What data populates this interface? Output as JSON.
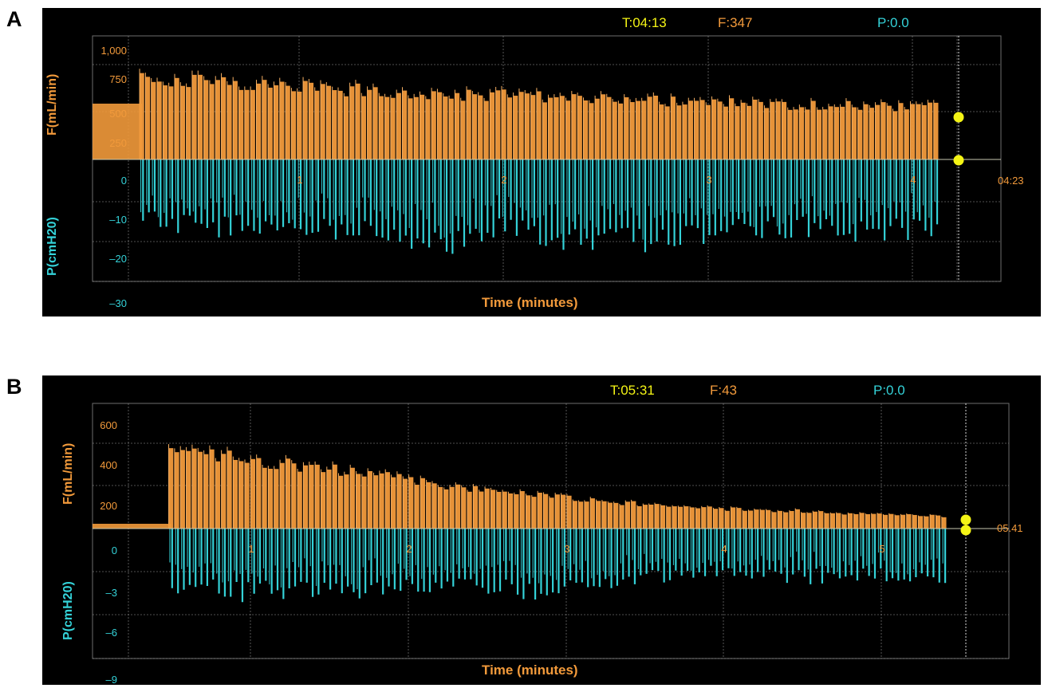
{
  "panels": [
    {
      "label": "A",
      "header": {
        "time": "T:04:13",
        "flow": "F:347",
        "pressure": "P:0.0"
      },
      "f_axis_label": "F(mL/min)",
      "p_axis_label": "P(cmH20)",
      "x_axis_label": "Time (minutes)",
      "end_time": "04:23",
      "colors": {
        "flow": "#f29a3b",
        "pressure": "#34d2d8",
        "marker": "#f4f415",
        "grid": "#9a9a9a"
      }
    },
    {
      "label": "B",
      "header": {
        "time": "T:05:31",
        "flow": "F:43",
        "pressure": "P:0.0"
      },
      "f_axis_label": "F(mL/min)",
      "p_axis_label": "P(cmH20)",
      "x_axis_label": "Time (minutes)",
      "end_time": "05.41",
      "colors": {
        "flow": "#f29a3b",
        "pressure": "#34d2d8",
        "marker": "#f4f415",
        "grid": "#9a9a9a"
      }
    }
  ],
  "chart_data": [
    {
      "type": "bar",
      "x_unit": "minutes",
      "xlim": [
        0,
        4.3
      ],
      "x_ticks": [
        "1",
        "2",
        "3",
        "4"
      ],
      "flow": {
        "ylim": [
          0,
          1000
        ],
        "y_ticks": [
          "1,000",
          "750",
          "500",
          "250"
        ],
        "breath_start_min": 0.07,
        "breath_interval_min": 0.0303,
        "peaks": [
          880,
          820,
          790,
          740,
          700,
          680,
          640,
          620,
          600,
          580,
          570,
          560
        ]
      },
      "pressure": {
        "ylim": [
          -30,
          0
        ],
        "y_ticks": [
          "0",
          "–10",
          "–20",
          "–30"
        ],
        "troughs": [
          -15,
          -17,
          -16,
          -18,
          -22,
          -17,
          -21,
          -20,
          -18,
          -17,
          -18,
          -17
        ]
      }
    },
    {
      "type": "bar",
      "x_unit": "minutes",
      "xlim": [
        0,
        5.5
      ],
      "x_ticks": [
        "1",
        "2",
        "3",
        "4",
        "5"
      ],
      "flow": {
        "ylim": [
          0,
          700
        ],
        "y_ticks": [
          "600",
          "400",
          "200"
        ],
        "breath_start_min": 0.28,
        "breath_interval_min": 0.0385,
        "peaks": [
          450,
          400,
          350,
          300,
          240,
          200,
          160,
          130,
          110,
          100,
          80,
          70
        ]
      },
      "pressure": {
        "ylim": [
          -9,
          0
        ],
        "y_ticks": [
          "0",
          "–3",
          "–6",
          "–9"
        ],
        "troughs": [
          -4.0,
          -4.5,
          -4.2,
          -4.5,
          -3.6,
          -4.4,
          -4.0,
          -3.4,
          -3.0,
          -3.4,
          -3.2,
          -3.5
        ]
      }
    }
  ]
}
